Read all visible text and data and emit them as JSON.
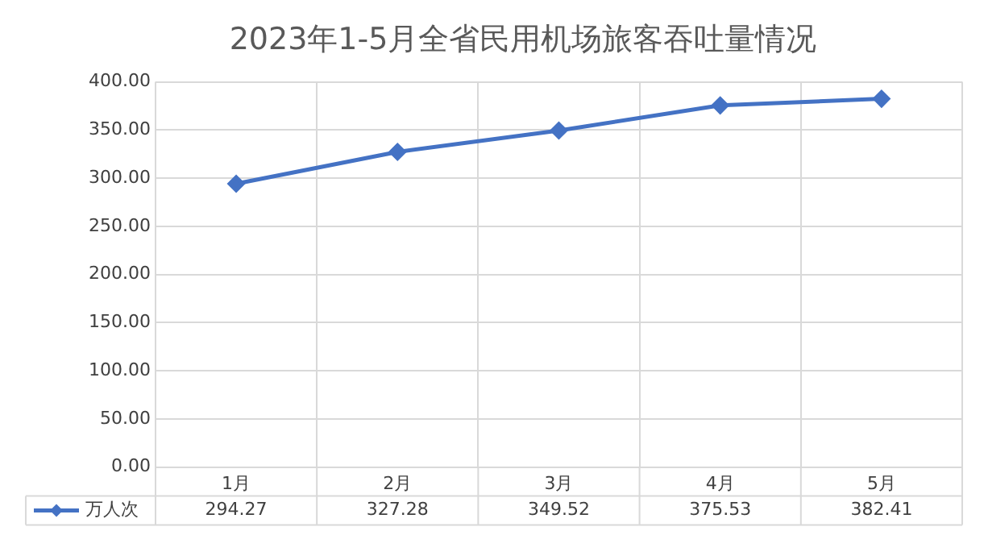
{
  "chart_data": {
    "type": "line",
    "title": "2023年1-5月全省民用机场旅客吞吐量情况",
    "categories": [
      "1月",
      "2月",
      "3月",
      "4月",
      "5月"
    ],
    "series": [
      {
        "name": "万人次",
        "color": "#4472c4",
        "values": [
          294.27,
          327.28,
          349.52,
          375.53,
          382.41
        ]
      }
    ],
    "ylim": [
      0,
      400
    ],
    "yticks": [
      {
        "value": 0,
        "label": "0.00"
      },
      {
        "value": 50,
        "label": "50.00"
      },
      {
        "value": 100,
        "label": "100.00"
      },
      {
        "value": 150,
        "label": "150.00"
      },
      {
        "value": 200,
        "label": "200.00"
      },
      {
        "value": 250,
        "label": "250.00"
      },
      {
        "value": 300,
        "label": "300.00"
      },
      {
        "value": 350,
        "label": "350.00"
      },
      {
        "value": 400,
        "label": "400.00"
      }
    ],
    "grid": true,
    "legend": "bottom",
    "marker": "diamond",
    "line_style": "solid",
    "data_labels": true
  }
}
